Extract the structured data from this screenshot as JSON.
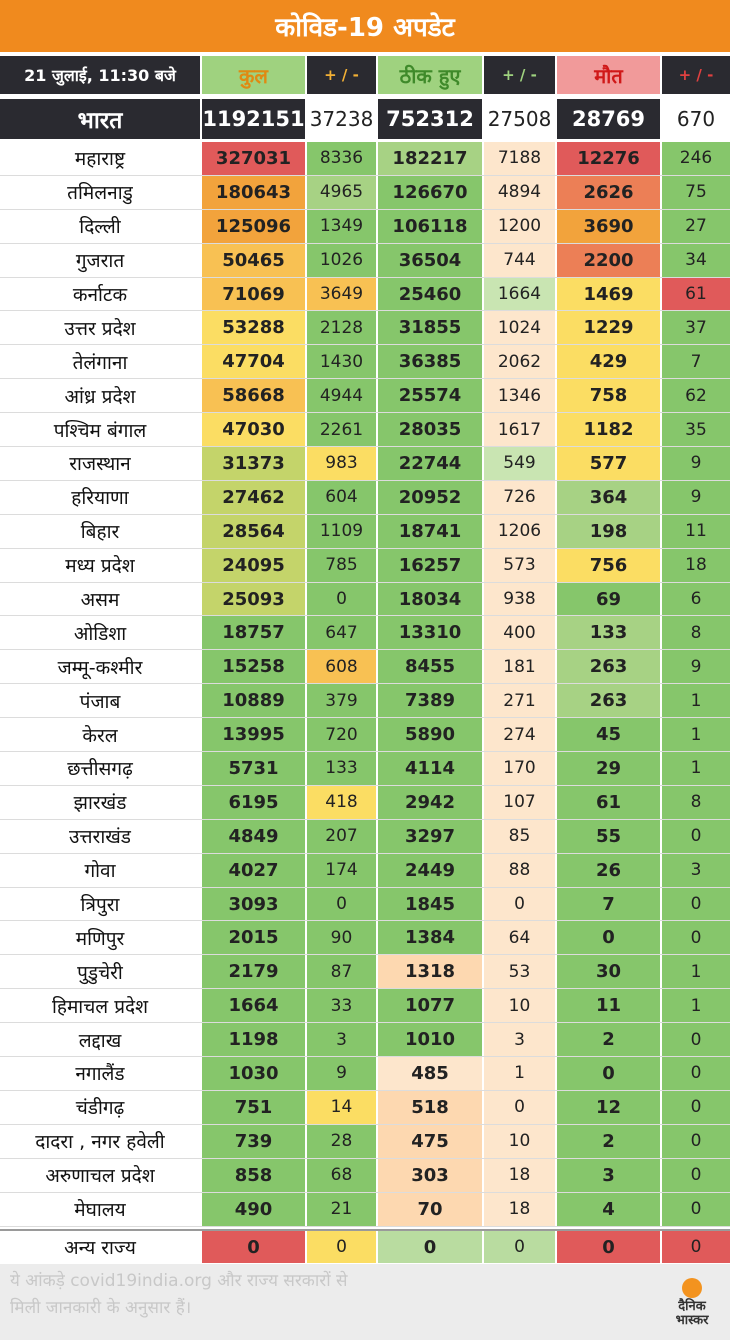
{
  "title": "कोविड-19 अपडेट",
  "header": {
    "date": "21 जुलाई, 11:30 बजे",
    "total": "कुल",
    "change1": "+ / -",
    "recovered": "ठीक हुए",
    "change2": "+ / -",
    "deaths": "मौत",
    "change3": "+ / -"
  },
  "india": {
    "name": "भारत",
    "total": "1192151",
    "total_change": "37238",
    "recovered": "752312",
    "recovered_change": "27508",
    "deaths": "28769",
    "deaths_change": "670"
  },
  "colors": {
    "banner": "#f08a1e",
    "dark_row": "#2a2a30",
    "red": "#e05a5a",
    "orange": "#f2a33c",
    "yellow": "#fbdd63",
    "green": "#86c66b",
    "peach": "#fde6cc"
  },
  "states": [
    {
      "name": "महाराष्ट्र",
      "total": "327031",
      "total_change": "8336",
      "recovered": "182217",
      "recovered_change": "7188",
      "deaths": "12276",
      "deaths_change": "246"
    },
    {
      "name": "तमिलनाडु",
      "total": "180643",
      "total_change": "4965",
      "recovered": "126670",
      "recovered_change": "4894",
      "deaths": "2626",
      "deaths_change": "75"
    },
    {
      "name": "दिल्ली",
      "total": "125096",
      "total_change": "1349",
      "recovered": "106118",
      "recovered_change": "1200",
      "deaths": "3690",
      "deaths_change": "27"
    },
    {
      "name": "गुजरात",
      "total": "50465",
      "total_change": "1026",
      "recovered": "36504",
      "recovered_change": "744",
      "deaths": "2200",
      "deaths_change": "34"
    },
    {
      "name": "कर्नाटक",
      "total": "71069",
      "total_change": "3649",
      "recovered": "25460",
      "recovered_change": "1664",
      "deaths": "1469",
      "deaths_change": "61"
    },
    {
      "name": "उत्तर प्रदेश",
      "total": "53288",
      "total_change": "2128",
      "recovered": "31855",
      "recovered_change": "1024",
      "deaths": "1229",
      "deaths_change": "37"
    },
    {
      "name": "तेलंगाना",
      "total": "47704",
      "total_change": "1430",
      "recovered": "36385",
      "recovered_change": "2062",
      "deaths": "429",
      "deaths_change": "7"
    },
    {
      "name": "आंध्र प्रदेश",
      "total": "58668",
      "total_change": "4944",
      "recovered": "25574",
      "recovered_change": "1346",
      "deaths": "758",
      "deaths_change": "62"
    },
    {
      "name": "पश्चिम बंगाल",
      "total": "47030",
      "total_change": "2261",
      "recovered": "28035",
      "recovered_change": "1617",
      "deaths": "1182",
      "deaths_change": "35"
    },
    {
      "name": "राजस्थान",
      "total": "31373",
      "total_change": "983",
      "recovered": "22744",
      "recovered_change": "549",
      "deaths": "577",
      "deaths_change": "9"
    },
    {
      "name": "हरियाणा",
      "total": "27462",
      "total_change": "604",
      "recovered": "20952",
      "recovered_change": "726",
      "deaths": "364",
      "deaths_change": "9"
    },
    {
      "name": "बिहार",
      "total": "28564",
      "total_change": "1109",
      "recovered": "18741",
      "recovered_change": "1206",
      "deaths": "198",
      "deaths_change": "11"
    },
    {
      "name": "मध्य प्रदेश",
      "total": "24095",
      "total_change": "785",
      "recovered": "16257",
      "recovered_change": "573",
      "deaths": "756",
      "deaths_change": "18"
    },
    {
      "name": "असम",
      "total": "25093",
      "total_change": "0",
      "recovered": "18034",
      "recovered_change": "938",
      "deaths": "69",
      "deaths_change": "6"
    },
    {
      "name": "ओडिशा",
      "total": "18757",
      "total_change": "647",
      "recovered": "13310",
      "recovered_change": "400",
      "deaths": "133",
      "deaths_change": "8"
    },
    {
      "name": "जम्मू-कश्मीर",
      "total": "15258",
      "total_change": "608",
      "recovered": "8455",
      "recovered_change": "181",
      "deaths": "263",
      "deaths_change": "9"
    },
    {
      "name": "पंजाब",
      "total": "10889",
      "total_change": "379",
      "recovered": "7389",
      "recovered_change": "271",
      "deaths": "263",
      "deaths_change": "1"
    },
    {
      "name": "केरल",
      "total": "13995",
      "total_change": "720",
      "recovered": "5890",
      "recovered_change": "274",
      "deaths": "45",
      "deaths_change": "1"
    },
    {
      "name": "छत्तीसगढ़",
      "total": "5731",
      "total_change": "133",
      "recovered": "4114",
      "recovered_change": "170",
      "deaths": "29",
      "deaths_change": "1"
    },
    {
      "name": "झारखंड",
      "total": "6195",
      "total_change": "418",
      "recovered": "2942",
      "recovered_change": "107",
      "deaths": "61",
      "deaths_change": "8"
    },
    {
      "name": "उत्तराखंड",
      "total": "4849",
      "total_change": "207",
      "recovered": "3297",
      "recovered_change": "85",
      "deaths": "55",
      "deaths_change": "0"
    },
    {
      "name": "गोवा",
      "total": "4027",
      "total_change": "174",
      "recovered": "2449",
      "recovered_change": "88",
      "deaths": "26",
      "deaths_change": "3"
    },
    {
      "name": "त्रिपुरा",
      "total": "3093",
      "total_change": "0",
      "recovered": "1845",
      "recovered_change": "0",
      "deaths": "7",
      "deaths_change": "0"
    },
    {
      "name": "मणिपुर",
      "total": "2015",
      "total_change": "90",
      "recovered": "1384",
      "recovered_change": "64",
      "deaths": "0",
      "deaths_change": "0"
    },
    {
      "name": "पुडुचेरी",
      "total": "2179",
      "total_change": "87",
      "recovered": "1318",
      "recovered_change": "53",
      "deaths": "30",
      "deaths_change": "1"
    },
    {
      "name": "हिमाचल प्रदेश",
      "total": "1664",
      "total_change": "33",
      "recovered": "1077",
      "recovered_change": "10",
      "deaths": "11",
      "deaths_change": "1"
    },
    {
      "name": "लद्दाख",
      "total": "1198",
      "total_change": "3",
      "recovered": "1010",
      "recovered_change": "3",
      "deaths": "2",
      "deaths_change": "0"
    },
    {
      "name": "नगालैंड",
      "total": "1030",
      "total_change": "9",
      "recovered": "485",
      "recovered_change": "1",
      "deaths": "0",
      "deaths_change": "0"
    },
    {
      "name": "चंडीगढ़",
      "total": "751",
      "total_change": "14",
      "recovered": "518",
      "recovered_change": "0",
      "deaths": "12",
      "deaths_change": "0"
    },
    {
      "name": "दादरा , नगर हवेली",
      "total": "739",
      "total_change": "28",
      "recovered": "475",
      "recovered_change": "10",
      "deaths": "2",
      "deaths_change": "0"
    },
    {
      "name": "अरुणाचल प्रदेश",
      "total": "858",
      "total_change": "68",
      "recovered": "303",
      "recovered_change": "18",
      "deaths": "3",
      "deaths_change": "0"
    },
    {
      "name": "मेघालय",
      "total": "490",
      "total_change": "21",
      "recovered": "70",
      "recovered_change": "18",
      "deaths": "4",
      "deaths_change": "0"
    }
  ],
  "other": {
    "name": "अन्य राज्य",
    "total": "0",
    "total_change": "0",
    "recovered": "0",
    "recovered_change": "0",
    "deaths": "0",
    "deaths_change": "0"
  },
  "footer": {
    "line1": "ये आंकड़े covid19india.org और राज्य सरकारों से",
    "line2": "मिली जानकारी के अनुसार हैं।",
    "logo_line1": "दैनिक",
    "logo_line2": "भास्कर"
  }
}
